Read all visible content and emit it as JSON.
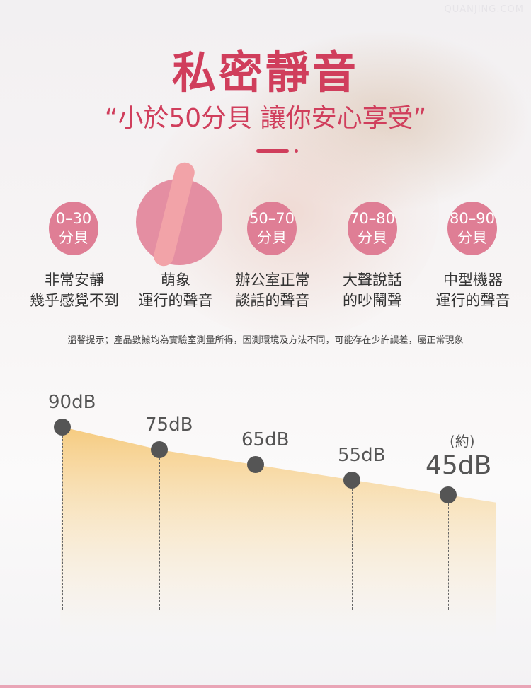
{
  "watermark": "QUANJING.COM",
  "title": "私密靜音",
  "subtitle": "“小於50分貝 讓你安心享受”",
  "levels": [
    {
      "range": "0–30",
      "unit": "分貝",
      "line1": "非常安靜",
      "line2": "幾乎感覺不到"
    },
    {
      "range": "",
      "unit": "",
      "line1": "萌象",
      "line2": "運行的聲音"
    },
    {
      "range": "50–70",
      "unit": "分貝",
      "line1": "辦公室正常",
      "line2": "談話的聲音"
    },
    {
      "range": "70–80",
      "unit": "分貝",
      "line1": "大聲說話",
      "line2": "的吵鬧聲"
    },
    {
      "range": "80–90",
      "unit": "分貝",
      "line1": "中型機器",
      "line2": "運行的聲音"
    }
  ],
  "note": "溫馨提示；產品數據均為實驗室測量所得，因測環境及方法不同，可能存在少許誤差，屬正常現象",
  "decibels": [
    {
      "label": "90dB",
      "value": 90
    },
    {
      "label": "75dB",
      "value": 75
    },
    {
      "label": "65dB",
      "value": 65
    },
    {
      "label": "55dB",
      "value": 55
    },
    {
      "label": "45dB",
      "value": 45,
      "prefix": "(約)"
    }
  ],
  "colors": {
    "accent": "#d03e5c",
    "circle": "#df7e95",
    "area": "#f5c36a"
  }
}
